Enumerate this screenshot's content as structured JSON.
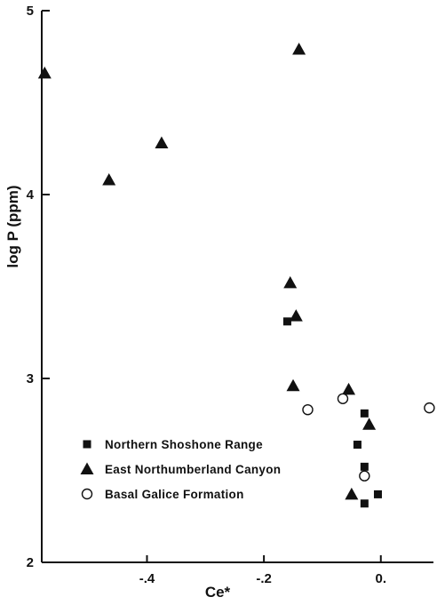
{
  "chart_data": {
    "type": "scatter",
    "xlabel": "Ce*",
    "ylabel": "log P (ppm)",
    "xlim": [
      -0.58,
      0.09
    ],
    "ylim": [
      2,
      5
    ],
    "x_ticks": [
      {
        "value": -0.4,
        "label": "-.4"
      },
      {
        "value": -0.2,
        "label": "-.2"
      },
      {
        "value": 0.0,
        "label": "0."
      }
    ],
    "y_ticks": [
      {
        "value": 2,
        "label": "2"
      },
      {
        "value": 3,
        "label": "3"
      },
      {
        "value": 4,
        "label": "4"
      },
      {
        "value": 5,
        "label": "5"
      }
    ],
    "grid": false,
    "legend_position": "bottom-left",
    "series": [
      {
        "name": "Northern Shoshone Range",
        "marker": "square",
        "color": "#111111",
        "points": [
          {
            "x": -0.16,
            "y": 3.31
          },
          {
            "x": -0.028,
            "y": 2.81
          },
          {
            "x": -0.04,
            "y": 2.64
          },
          {
            "x": -0.028,
            "y": 2.52
          },
          {
            "x": -0.005,
            "y": 2.37
          },
          {
            "x": -0.028,
            "y": 2.32
          }
        ]
      },
      {
        "name": "East Northumberland Canyon",
        "marker": "triangle",
        "color": "#111111",
        "points": [
          {
            "x": -0.575,
            "y": 4.66
          },
          {
            "x": -0.465,
            "y": 4.08
          },
          {
            "x": -0.375,
            "y": 4.28
          },
          {
            "x": -0.14,
            "y": 4.79
          },
          {
            "x": -0.155,
            "y": 3.52
          },
          {
            "x": -0.145,
            "y": 3.34
          },
          {
            "x": -0.15,
            "y": 2.96
          },
          {
            "x": -0.055,
            "y": 2.94
          },
          {
            "x": -0.02,
            "y": 2.75
          },
          {
            "x": -0.05,
            "y": 2.37
          }
        ]
      },
      {
        "name": "Basal Galice Formation",
        "marker": "circle-open",
        "color": "#111111",
        "points": [
          {
            "x": -0.125,
            "y": 2.83
          },
          {
            "x": -0.065,
            "y": 2.89
          },
          {
            "x": -0.028,
            "y": 2.47
          },
          {
            "x": 0.083,
            "y": 2.84
          }
        ]
      }
    ]
  }
}
